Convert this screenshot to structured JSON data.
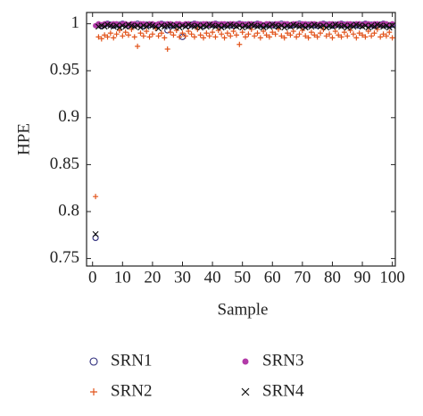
{
  "chart_data": {
    "type": "scatter",
    "x_label": "Sample",
    "y_label": "HPE",
    "x": [
      1,
      2,
      3,
      4,
      5,
      6,
      7,
      8,
      9,
      10,
      11,
      12,
      13,
      14,
      15,
      16,
      17,
      18,
      19,
      20,
      21,
      22,
      23,
      24,
      25,
      26,
      27,
      28,
      29,
      30,
      31,
      32,
      33,
      34,
      35,
      36,
      37,
      38,
      39,
      40,
      41,
      42,
      43,
      44,
      45,
      46,
      47,
      48,
      49,
      50,
      51,
      52,
      53,
      54,
      55,
      56,
      57,
      58,
      59,
      60,
      61,
      62,
      63,
      64,
      65,
      66,
      67,
      68,
      69,
      70,
      71,
      72,
      73,
      74,
      75,
      76,
      77,
      78,
      79,
      80,
      81,
      82,
      83,
      84,
      85,
      86,
      87,
      88,
      89,
      90,
      91,
      92,
      93,
      94,
      95,
      96,
      97,
      98,
      99,
      100
    ],
    "xlim": [
      -2,
      101
    ],
    "xticks": [
      0,
      10,
      20,
      30,
      40,
      50,
      60,
      70,
      80,
      90,
      100
    ],
    "ylim": [
      0.742,
      1.012
    ],
    "yticks": [
      0.75,
      0.8,
      0.85,
      0.9,
      0.95,
      1
    ],
    "legend_position": "bottom",
    "series": [
      {
        "name": "SRN1",
        "color": "#2b2a7a",
        "marker": "circle",
        "values": [
          0.772,
          0.999,
          0.998,
          0.999,
          1.0,
          0.999,
          0.998,
          0.999,
          0.999,
          1.0,
          0.999,
          0.998,
          0.999,
          0.999,
          1.0,
          0.999,
          0.998,
          0.999,
          0.999,
          0.999,
          0.998,
          0.999,
          1.0,
          0.999,
          0.993,
          0.999,
          0.998,
          0.999,
          0.999,
          0.986,
          0.999,
          0.998,
          0.999,
          1.0,
          0.999,
          0.999,
          0.998,
          0.999,
          0.999,
          0.999,
          1.0,
          0.999,
          0.998,
          0.999,
          0.999,
          0.999,
          0.998,
          0.999,
          1.0,
          0.999,
          0.999,
          0.998,
          0.999,
          0.999,
          1.0,
          0.999,
          0.998,
          0.999,
          0.999,
          0.999,
          0.998,
          0.999,
          1.0,
          0.999,
          0.999,
          0.998,
          0.999,
          0.999,
          1.0,
          0.999,
          0.998,
          0.999,
          0.999,
          0.999,
          0.998,
          0.999,
          1.0,
          0.999,
          0.999,
          0.998,
          0.999,
          0.999,
          1.0,
          0.999,
          0.998,
          0.999,
          0.999,
          0.999,
          0.998,
          0.999,
          1.0,
          0.999,
          0.999,
          0.998,
          0.999,
          0.999,
          1.0,
          0.999,
          0.998,
          0.999
        ]
      },
      {
        "name": "SRN2",
        "color": "#e2541b",
        "marker": "plus",
        "values": [
          0.816,
          0.986,
          0.984,
          0.988,
          0.986,
          0.99,
          0.985,
          0.989,
          0.993,
          0.987,
          0.991,
          0.988,
          0.994,
          0.986,
          0.976,
          0.99,
          0.987,
          0.992,
          0.986,
          0.989,
          0.995,
          0.987,
          0.99,
          0.985,
          0.973,
          0.991,
          0.988,
          0.993,
          0.986,
          0.99,
          0.987,
          0.992,
          0.989,
          0.986,
          0.994,
          0.988,
          0.985,
          0.99,
          0.987,
          0.991,
          0.986,
          0.993,
          0.989,
          0.985,
          0.99,
          0.987,
          0.992,
          0.988,
          0.978,
          0.991,
          0.986,
          0.989,
          0.994,
          0.987,
          0.99,
          0.985,
          0.992,
          0.988,
          0.986,
          0.991,
          0.989,
          0.994,
          0.987,
          0.985,
          0.99,
          0.988,
          0.992,
          0.986,
          0.989,
          0.993,
          0.987,
          0.985,
          0.991,
          0.988,
          0.986,
          0.99,
          0.994,
          0.987,
          0.989,
          0.985,
          0.992,
          0.988,
          0.986,
          0.991,
          0.987,
          0.993,
          0.989,
          0.985,
          0.99,
          0.988,
          0.986,
          0.992,
          0.987,
          0.99,
          0.994,
          0.986,
          0.989,
          0.987,
          0.991,
          0.985
        ]
      },
      {
        "name": "SRN3",
        "color": "#b23aa8",
        "marker": "dot",
        "values": [
          0.998,
          1.0,
          0.999,
          1.0,
          1.0,
          0.999,
          1.0,
          1.0,
          0.999,
          1.0,
          1.0,
          0.999,
          1.0,
          1.0,
          0.999,
          1.0,
          1.0,
          0.999,
          1.0,
          1.0,
          0.999,
          1.0,
          1.0,
          0.999,
          1.0,
          1.0,
          0.999,
          1.0,
          1.0,
          0.999,
          1.0,
          1.0,
          0.999,
          1.0,
          1.0,
          0.999,
          1.0,
          1.0,
          0.999,
          1.0,
          1.0,
          0.999,
          1.0,
          1.0,
          0.999,
          1.0,
          1.0,
          0.999,
          1.0,
          1.0,
          0.999,
          1.0,
          1.0,
          0.999,
          1.0,
          1.0,
          0.999,
          1.0,
          1.0,
          0.999,
          1.0,
          1.0,
          0.999,
          1.0,
          1.0,
          0.999,
          1.0,
          1.0,
          0.999,
          1.0,
          1.0,
          0.999,
          1.0,
          1.0,
          0.999,
          1.0,
          1.0,
          0.999,
          1.0,
          1.0,
          0.999,
          1.0,
          1.0,
          0.999,
          1.0,
          1.0,
          0.999,
          1.0,
          1.0,
          0.999,
          1.0,
          1.0,
          0.999,
          1.0,
          1.0,
          0.999,
          1.0,
          1.0,
          0.999,
          1.0
        ]
      },
      {
        "name": "SRN4",
        "color": "#111111",
        "marker": "cross",
        "values": [
          0.776,
          0.997,
          0.998,
          0.997,
          0.999,
          0.998,
          0.997,
          0.998,
          0.996,
          0.998,
          0.997,
          0.999,
          0.998,
          0.997,
          0.998,
          0.996,
          0.998,
          0.997,
          0.999,
          0.998,
          0.997,
          0.995,
          0.998,
          0.997,
          0.998,
          0.999,
          0.997,
          0.998,
          0.996,
          0.998,
          0.997,
          0.999,
          0.998,
          0.997,
          0.998,
          0.996,
          0.998,
          0.997,
          0.999,
          0.998,
          0.997,
          0.998,
          0.996,
          0.998,
          0.997,
          0.999,
          0.998,
          0.997,
          0.998,
          0.996,
          0.998,
          0.997,
          0.999,
          0.998,
          0.997,
          0.998,
          0.996,
          0.998,
          0.997,
          0.999,
          0.998,
          0.997,
          0.998,
          0.996,
          0.998,
          0.997,
          0.999,
          0.998,
          0.997,
          0.998,
          0.996,
          0.998,
          0.997,
          0.999,
          0.998,
          0.997,
          0.998,
          0.996,
          0.998,
          0.997,
          0.999,
          0.998,
          0.997,
          0.998,
          0.996,
          0.998,
          0.997,
          0.999,
          0.998,
          0.997,
          0.998,
          0.996,
          0.998,
          0.997,
          0.999,
          0.998,
          0.997,
          0.998,
          0.996,
          0.998
        ]
      }
    ]
  }
}
